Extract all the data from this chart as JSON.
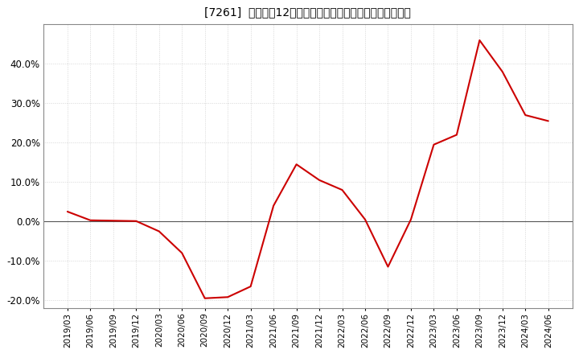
{
  "title": "[7261]  売上高の12か月移動合計の対前年同期増減率の推移",
  "line_color": "#cc0000",
  "bg_color": "#ffffff",
  "plot_bg_color": "#ffffff",
  "grid_color": "#aaaaaa",
  "zero_line_color": "#555555",
  "dates": [
    "2019/03",
    "2019/06",
    "2019/09",
    "2019/12",
    "2020/03",
    "2020/06",
    "2020/09",
    "2020/12",
    "2021/03",
    "2021/06",
    "2021/09",
    "2021/12",
    "2022/03",
    "2022/06",
    "2022/09",
    "2022/12",
    "2023/03",
    "2023/06",
    "2023/09",
    "2023/12",
    "2024/03",
    "2024/06"
  ],
  "values": [
    2.5,
    0.3,
    0.2,
    0.1,
    -2.5,
    -8.0,
    -19.5,
    -19.2,
    -16.5,
    4.0,
    14.5,
    10.5,
    8.0,
    0.5,
    -11.5,
    0.5,
    19.5,
    22.0,
    46.0,
    38.0,
    27.0,
    25.5
  ],
  "ylim": [
    -22,
    50
  ],
  "yticks": [
    -20.0,
    -10.0,
    0.0,
    10.0,
    20.0,
    30.0,
    40.0
  ],
  "xtick_labels": [
    "2019/03",
    "2019/06",
    "2019/09",
    "2019/12",
    "2020/03",
    "2020/06",
    "2020/09",
    "2020/12",
    "2021/03",
    "2021/06",
    "2021/09",
    "2021/12",
    "2022/03",
    "2022/06",
    "2022/09",
    "2022/12",
    "2023/03",
    "2023/06",
    "2023/09",
    "2023/12",
    "2024/03",
    "2024/06"
  ],
  "title_fontsize": 10.5,
  "ytick_fontsize": 8.5,
  "xtick_fontsize": 7.5
}
